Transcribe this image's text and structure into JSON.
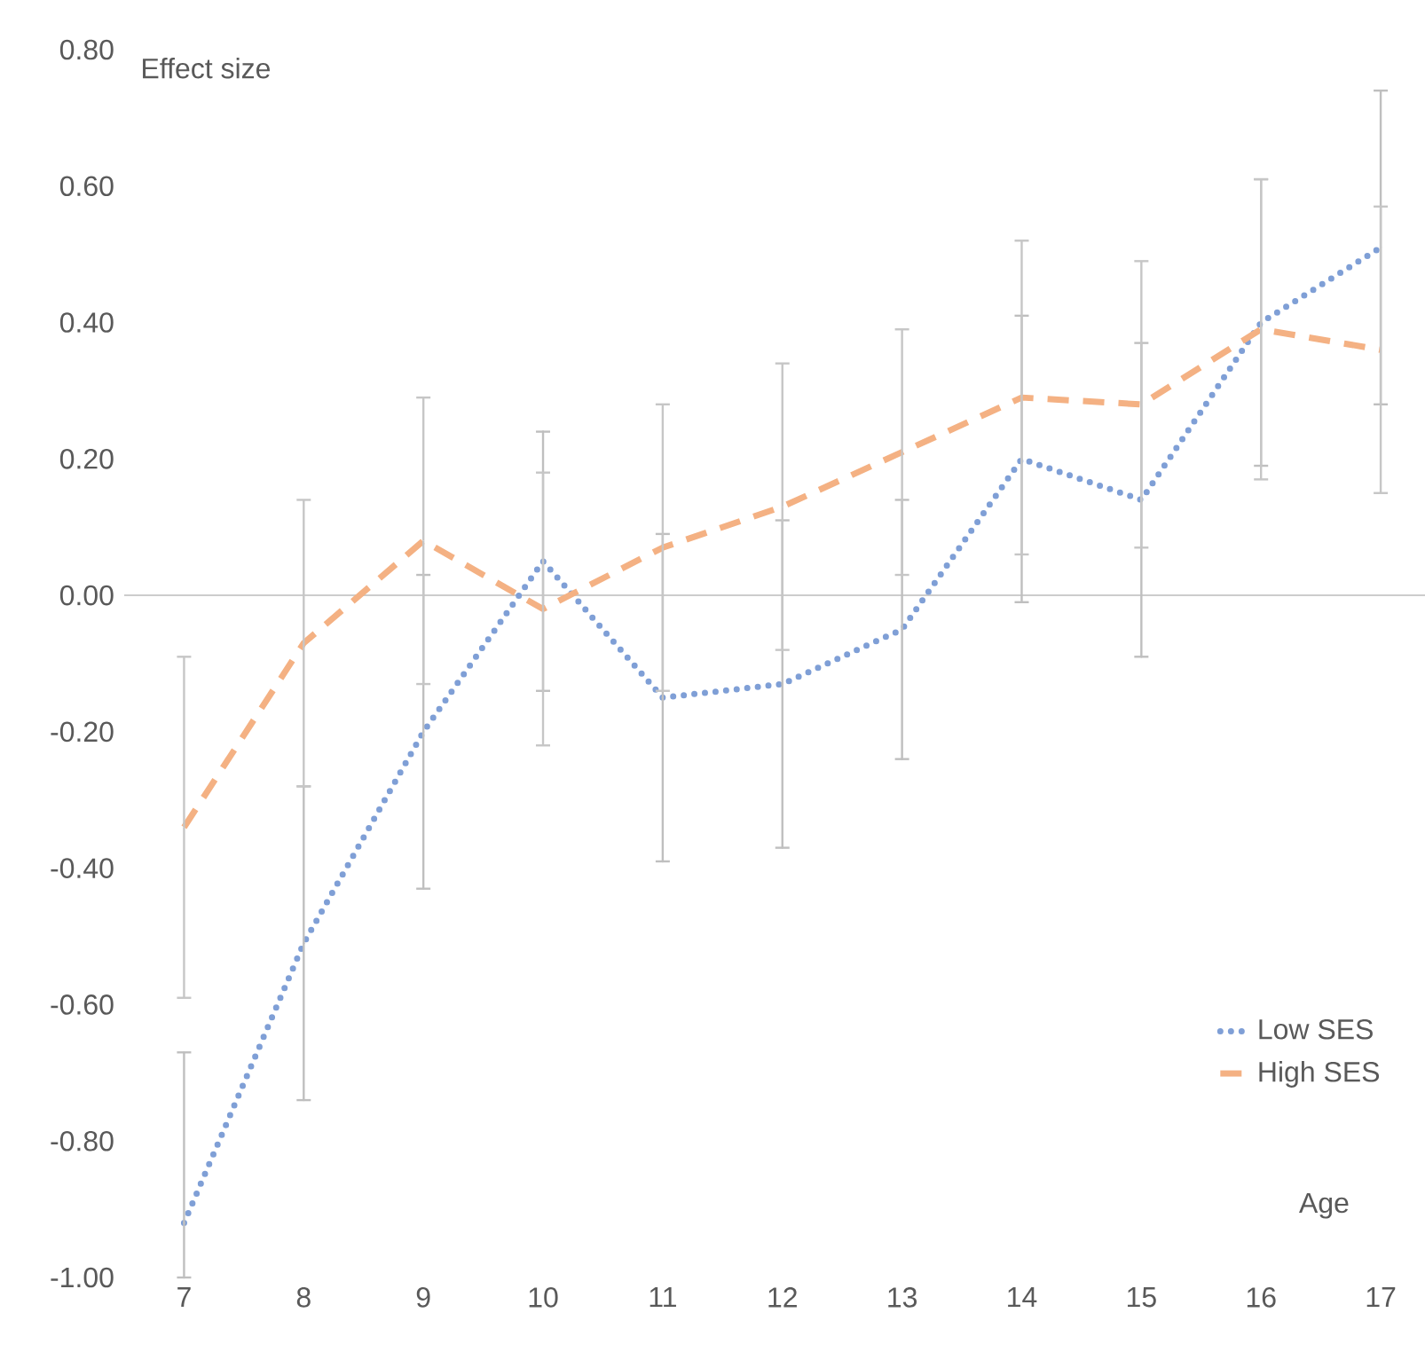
{
  "chart_data": {
    "type": "line",
    "xlabel": "Age",
    "ylabel": "Effect size",
    "categories": [
      "7",
      "8",
      "9",
      "10",
      "11",
      "12",
      "13",
      "14",
      "15",
      "16",
      "17"
    ],
    "ylim": [
      -1.0,
      0.8
    ],
    "yticks": [
      {
        "value": -1.0,
        "label": "-1.00"
      },
      {
        "value": -0.8,
        "label": "-0.80"
      },
      {
        "value": -0.6,
        "label": "-0.60"
      },
      {
        "value": -0.4,
        "label": "-0.40"
      },
      {
        "value": -0.2,
        "label": "-0.20"
      },
      {
        "value": 0.0,
        "label": "0.00"
      },
      {
        "value": 0.2,
        "label": "0.20"
      },
      {
        "value": 0.4,
        "label": "0.40"
      },
      {
        "value": 0.6,
        "label": "0.60"
      },
      {
        "value": 0.8,
        "label": "0.80"
      }
    ],
    "legend": "bottom right",
    "marker": "none",
    "series": [
      {
        "name": "Low SES",
        "color": "#7f9fd6",
        "line_style": "dotted",
        "values": [
          -0.92,
          -0.51,
          -0.2,
          0.05,
          -0.15,
          -0.13,
          -0.05,
          0.2,
          0.14,
          0.4,
          0.51
        ],
        "errors": [
          [
            -1.0,
            -0.67
          ],
          0.23,
          0.23,
          0.19,
          0.24,
          0.24,
          0.19,
          0.21,
          0.23,
          0.21,
          0.23
        ]
      },
      {
        "name": "High SES",
        "color": "#f4b183",
        "line_style": "dashed",
        "values": [
          -0.34,
          -0.07,
          0.08,
          -0.02,
          0.07,
          0.13,
          0.21,
          0.29,
          0.28,
          0.39,
          0.36
        ],
        "errors": [
          0.25,
          0.21,
          0.21,
          0.2,
          0.21,
          0.21,
          0.18,
          0.23,
          0.21,
          0.22,
          0.21
        ]
      }
    ]
  }
}
